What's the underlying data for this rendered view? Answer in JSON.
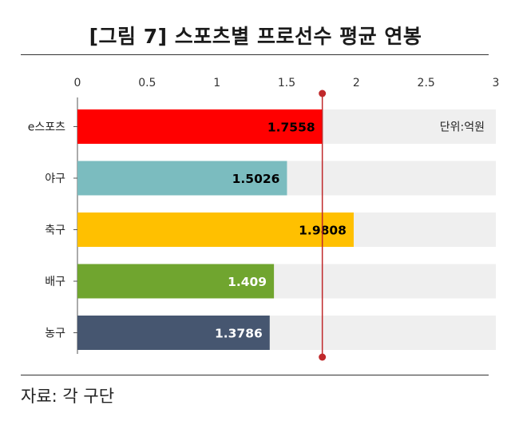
{
  "title": "[그림 7] 스포츠별 프로선수 평균 연봉",
  "source": "자료: 각 구단",
  "unit_label": "단위:억원",
  "colors": {
    "track": "#efefef",
    "refline": "#c0292b",
    "bars": [
      "#ff0000",
      "#7bbcbf",
      "#ffc000",
      "#70a52f",
      "#465670"
    ],
    "value_text": [
      "#000000",
      "#000000",
      "#000000",
      "#ffffff",
      "#ffffff"
    ]
  },
  "chart_data": {
    "type": "bar",
    "orientation": "horizontal",
    "categories": [
      "e스포츠",
      "야구",
      "축구",
      "배구",
      "농구"
    ],
    "values": [
      1.7558,
      1.5026,
      1.9808,
      1.409,
      1.3786
    ],
    "value_labels": [
      "1.7558",
      "1.5026",
      "1.9808",
      "1.409",
      "1.3786"
    ],
    "x_ticks": [
      "0",
      "0.5",
      "1",
      "1.5",
      "2",
      "2.5",
      "3"
    ],
    "xlim": [
      0,
      3
    ],
    "axis_position": "top",
    "reference_line": 1.7558,
    "grid": false,
    "legend": "none"
  }
}
